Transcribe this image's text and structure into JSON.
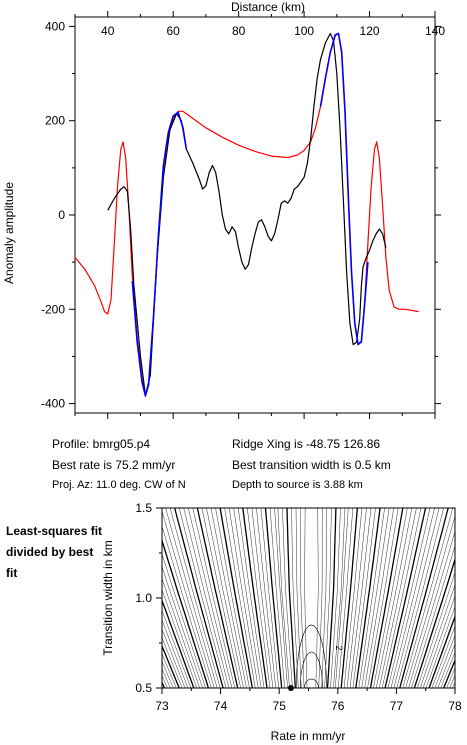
{
  "chart_data": [
    {
      "type": "line",
      "xlabel": "Distance (km)",
      "ylabel": "Anomaly amplitude",
      "xlim": [
        30,
        140
      ],
      "ylim": [
        -420,
        420
      ],
      "xticks": [
        40,
        60,
        80,
        100,
        120,
        140
      ],
      "yticks": [
        -400,
        -200,
        0,
        200,
        400
      ],
      "series": [
        {
          "color": "#ff0000",
          "points": [
            [
              30,
              -90
            ],
            [
              33,
              -115
            ],
            [
              36,
              -150
            ],
            [
              38,
              -185
            ],
            [
              39,
              -205
            ],
            [
              40,
              -210
            ],
            [
              41,
              -180
            ],
            [
              42,
              -60
            ],
            [
              43,
              60
            ],
            [
              44,
              140
            ],
            [
              44.7,
              155
            ],
            [
              45.5,
              120
            ],
            [
              46.5,
              10
            ],
            [
              47.5,
              -130
            ],
            [
              49,
              -260
            ],
            [
              50.5,
              -350
            ],
            [
              51.5,
              -385
            ],
            [
              52.5,
              -360
            ],
            [
              54,
              -220
            ],
            [
              55.5,
              -40
            ],
            [
              57,
              100
            ],
            [
              58.5,
              170
            ],
            [
              60,
              205
            ],
            [
              61.5,
              220
            ],
            [
              63,
              220
            ],
            [
              65,
              210
            ],
            [
              70,
              185
            ],
            [
              75,
              165
            ],
            [
              80,
              148
            ],
            [
              85,
              135
            ],
            [
              90,
              125
            ],
            [
              95,
              122
            ],
            [
              98,
              127
            ],
            [
              100,
              137
            ],
            [
              102,
              155
            ],
            [
              103.5,
              185
            ],
            [
              105,
              230
            ],
            [
              106.5,
              290
            ],
            [
              108,
              345
            ],
            [
              109.5,
              380
            ],
            [
              110.5,
              385
            ],
            [
              111.5,
              345
            ],
            [
              112.5,
              220
            ],
            [
              113.5,
              40
            ],
            [
              114.5,
              -120
            ],
            [
              115.5,
              -230
            ],
            [
              116.5,
              -275
            ],
            [
              117.5,
              -270
            ],
            [
              118.5,
              -190
            ],
            [
              119.5,
              -60
            ],
            [
              120.5,
              60
            ],
            [
              121.5,
              140
            ],
            [
              122.2,
              155
            ],
            [
              123,
              120
            ],
            [
              124,
              20
            ],
            [
              125,
              -90
            ],
            [
              126,
              -160
            ],
            [
              127.5,
              -195
            ],
            [
              129,
              -200
            ],
            [
              131,
              -200
            ],
            [
              135,
              -205
            ]
          ]
        },
        {
          "color": "#000000",
          "points": [
            [
              40,
              10
            ],
            [
              42,
              35
            ],
            [
              44,
              55
            ],
            [
              45,
              60
            ],
            [
              46,
              50
            ],
            [
              47,
              -30
            ],
            [
              48,
              -150
            ],
            [
              50,
              -300
            ],
            [
              51.5,
              -382
            ],
            [
              53,
              -340
            ],
            [
              55,
              -100
            ],
            [
              57,
              80
            ],
            [
              59,
              180
            ],
            [
              61,
              215
            ],
            [
              62.5,
              200
            ],
            [
              64,
              140
            ],
            [
              66,
              110
            ],
            [
              68,
              75
            ],
            [
              69,
              55
            ],
            [
              70,
              62
            ],
            [
              71,
              90
            ],
            [
              72,
              105
            ],
            [
              73,
              90
            ],
            [
              74,
              50
            ],
            [
              75,
              0
            ],
            [
              76,
              -30
            ],
            [
              77,
              -40
            ],
            [
              78,
              -25
            ],
            [
              79,
              -35
            ],
            [
              80,
              -70
            ],
            [
              81,
              -100
            ],
            [
              82,
              -115
            ],
            [
              83,
              -105
            ],
            [
              84,
              -70
            ],
            [
              85,
              -40
            ],
            [
              86,
              -15
            ],
            [
              87,
              -10
            ],
            [
              88,
              -25
            ],
            [
              89,
              -45
            ],
            [
              90,
              -55
            ],
            [
              91,
              -40
            ],
            [
              92,
              -10
            ],
            [
              93,
              25
            ],
            [
              94,
              30
            ],
            [
              95,
              25
            ],
            [
              96,
              35
            ],
            [
              97,
              55
            ],
            [
              98,
              60
            ],
            [
              99,
              70
            ],
            [
              100,
              80
            ],
            [
              101,
              110
            ],
            [
              102,
              160
            ],
            [
              103,
              230
            ],
            [
              104,
              290
            ],
            [
              105,
              330
            ],
            [
              106.5,
              365
            ],
            [
              108,
              385
            ],
            [
              109,
              370
            ],
            [
              110,
              300
            ],
            [
              111,
              180
            ],
            [
              112,
              30
            ],
            [
              113,
              -120
            ],
            [
              114,
              -230
            ],
            [
              115,
              -275
            ],
            [
              116,
              -270
            ],
            [
              117,
              -220
            ],
            [
              117.5,
              -150
            ],
            [
              118,
              -110
            ],
            [
              119,
              -90
            ],
            [
              120,
              -75
            ],
            [
              121,
              -55
            ],
            [
              122,
              -40
            ],
            [
              123,
              -30
            ],
            [
              124,
              -40
            ],
            [
              125,
              -70
            ]
          ]
        },
        {
          "color": "#0000ff",
          "points": [
            [
              47.5,
              -140
            ],
            [
              49,
              -270
            ],
            [
              50.5,
              -355
            ],
            [
              51.5,
              -383
            ],
            [
              52.5,
              -360
            ],
            [
              54,
              -215
            ],
            [
              55.5,
              -40
            ],
            [
              57,
              105
            ],
            [
              58.5,
              175
            ],
            [
              60,
              210
            ],
            [
              61.5,
              218
            ],
            [
              63,
              185
            ],
            [
              64,
              140
            ]
          ]
        },
        {
          "color": "#0000ff",
          "points": [
            [
              105,
              230
            ],
            [
              106.5,
              290
            ],
            [
              108,
              345
            ],
            [
              109.5,
              382
            ],
            [
              110.5,
              385
            ],
            [
              111.5,
              345
            ],
            [
              112.5,
              220
            ],
            [
              113.5,
              40
            ],
            [
              114.5,
              -120
            ],
            [
              115.5,
              -230
            ],
            [
              116.5,
              -275
            ],
            [
              117.5,
              -268
            ],
            [
              118.5,
              -190
            ],
            [
              119.5,
              -100
            ]
          ]
        }
      ]
    },
    {
      "type": "heatmap",
      "xlabel": "Rate in mm/yr",
      "ylabel": "Transition width in km",
      "xlim": [
        73,
        78
      ],
      "ylim": [
        0.5,
        1.5
      ],
      "xticks": [
        73,
        74,
        75,
        76,
        77,
        78
      ],
      "yticks": [
        0.5,
        1.0,
        1.5
      ],
      "xticklabels": [
        "73",
        "74",
        "75",
        "76",
        "77",
        "78"
      ],
      "yticklabels": [
        "0.5",
        "1.0",
        "1.5"
      ],
      "contour_label": "2",
      "best_fit": {
        "rate": 75.2,
        "width": 0.5
      }
    }
  ],
  "info": {
    "profile": "Profile: bmrg05.p4",
    "rate": "Best rate is 75.2 mm/yr",
    "azimuth": "Proj. Az: 11.0 deg. CW of N",
    "ridge": "Ridge Xing is -48.75 126.86",
    "transition": "Best transition width is 0.5 km",
    "depth": "Depth to source is   3.88 km"
  },
  "side_label": "Least-squares fit divided by best fit"
}
